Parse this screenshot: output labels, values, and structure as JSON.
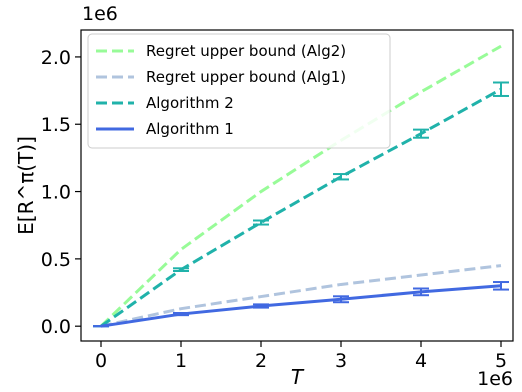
{
  "chart_data": {
    "type": "line",
    "xlabel": "T",
    "ylabel": "E[R^π(T)]",
    "x_multiplier": "1e6",
    "y_multiplier": "1e6",
    "xlim": [
      -0.25,
      5.15
    ],
    "ylim": [
      -0.11,
      2.2
    ],
    "x_ticks": [
      0,
      1,
      2,
      3,
      4,
      5
    ],
    "x_tick_labels": [
      "0",
      "1",
      "2",
      "3",
      "4",
      "5"
    ],
    "y_ticks": [
      0.0,
      0.5,
      1.0,
      1.5,
      2.0
    ],
    "y_tick_labels": [
      "0.0",
      "0.5",
      "1.0",
      "1.5",
      "2.0"
    ],
    "legend_position": "top-left",
    "grid": false,
    "x": [
      0,
      1,
      2,
      3,
      4,
      5
    ],
    "series": [
      {
        "name": "Regret upper bound (Alg2)",
        "style": "dashed",
        "color": "#98fb98",
        "values": [
          0.0,
          0.57,
          1.0,
          1.38,
          1.74,
          2.08
        ]
      },
      {
        "name": "Regret upper bound (Alg1)",
        "style": "dashed",
        "color": "#b0c4de",
        "values": [
          0.0,
          0.13,
          0.22,
          0.31,
          0.38,
          0.45
        ]
      },
      {
        "name": "Algorithm 2",
        "style": "dashed",
        "color": "#20b2aa",
        "values": [
          0.0,
          0.42,
          0.77,
          1.11,
          1.43,
          1.76
        ],
        "errors": [
          0.0,
          0.01,
          0.015,
          0.02,
          0.03,
          0.05
        ]
      },
      {
        "name": "Algorithm 1",
        "style": "solid",
        "color": "#4169e1",
        "values": [
          0.0,
          0.09,
          0.15,
          0.2,
          0.255,
          0.3
        ],
        "errors": [
          0.0,
          0.008,
          0.012,
          0.022,
          0.025,
          0.028
        ]
      }
    ]
  }
}
